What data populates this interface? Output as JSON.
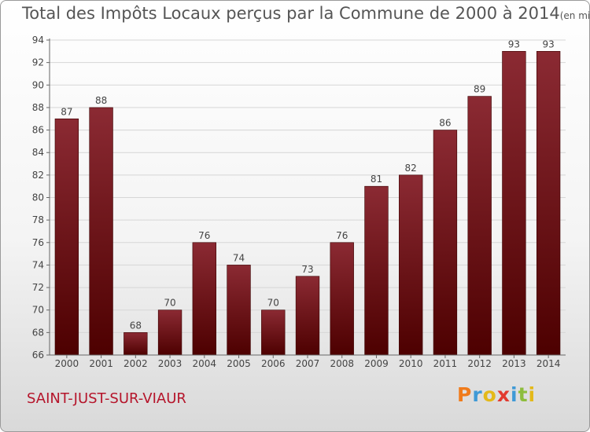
{
  "header": {
    "title": "Total des Impôts Locaux perçus par la Commune de 2000 à 2014",
    "unit": "(en milliers d'€)"
  },
  "footer": {
    "commune": "SAINT-JUST-SUR-VIAUR",
    "logo_letters": [
      {
        "char": "P",
        "color": "#f07b1b"
      },
      {
        "char": "r",
        "color": "#3f9ad6"
      },
      {
        "char": "o",
        "color": "#e4b919"
      },
      {
        "char": "x",
        "color": "#e23a2f"
      },
      {
        "char": "i",
        "color": "#3f9ad6"
      },
      {
        "char": "t",
        "color": "#8dbd3c"
      },
      {
        "char": "i",
        "color": "#e4b919"
      }
    ]
  },
  "chart_data": {
    "type": "bar",
    "categories": [
      "2000",
      "2001",
      "2002",
      "2003",
      "2004",
      "2005",
      "2006",
      "2007",
      "2008",
      "2009",
      "2010",
      "2011",
      "2012",
      "2013",
      "2014"
    ],
    "values": [
      87,
      88,
      68,
      70,
      76,
      74,
      70,
      73,
      76,
      81,
      82,
      86,
      89,
      93,
      93
    ],
    "ylim": [
      66,
      94
    ],
    "yticks": [
      66,
      68,
      70,
      72,
      74,
      76,
      78,
      80,
      82,
      84,
      86,
      88,
      90,
      92,
      94
    ],
    "grid": true,
    "bar_color_top": "#8b2a33",
    "bar_color_bottom": "#4d0000"
  }
}
